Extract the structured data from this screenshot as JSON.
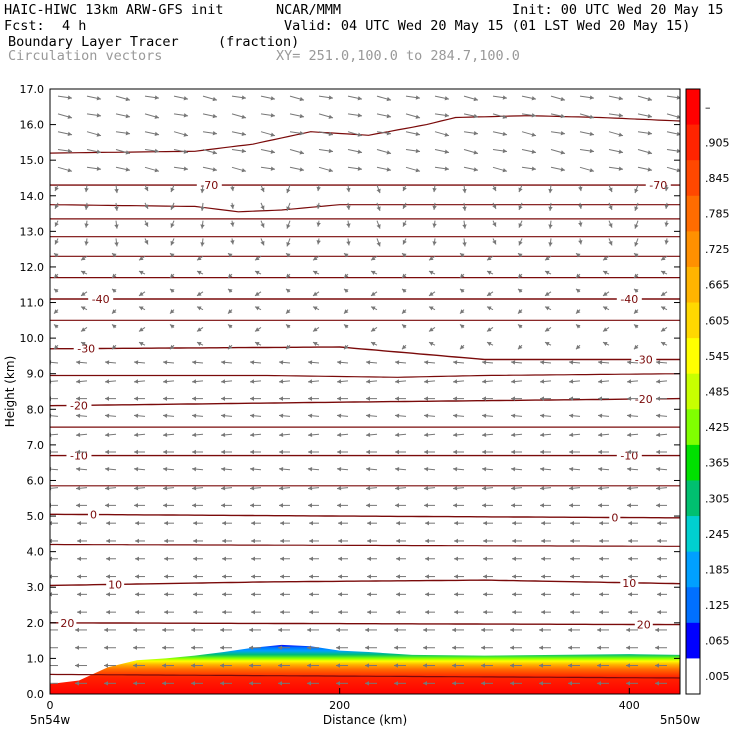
{
  "header": {
    "model": "HAIC-HIWC 13km ARW-GFS init",
    "org": "NCAR/MMM",
    "init": "Init: 00 UTC Wed 20 May 15",
    "fcst_label": "Fcst:",
    "fcst_value": "4 h",
    "valid": "Valid: 04 UTC Wed 20 May 15 (01 LST Wed 20 May 15)",
    "field1": "Boundary Layer Tracer",
    "field1_units": "(fraction)",
    "field2": "Circulation vectors",
    "xsec": "XY= 251.0,100.0 to 284.7,100.0"
  },
  "chart_data": {
    "type": "heatmap",
    "xlabel": "Distance (km)",
    "ylabel": "Height (km)",
    "xlim": [
      0,
      435
    ],
    "ylim": [
      0,
      17
    ],
    "x_ticks": [
      0,
      200,
      400
    ],
    "y_ticks": [
      "0.0",
      "1.0",
      "2.0",
      "3.0",
      "4.0",
      "5.0",
      "6.0",
      "7.0",
      "8.0",
      "9.0",
      "10.0",
      "11.0",
      "12.0",
      "13.0",
      "14.0",
      "15.0",
      "16.0",
      "17.0"
    ],
    "x_endpoints": [
      "5n54w",
      "5n50w"
    ],
    "colorbar": {
      "labels": [
        "–",
        ".905",
        ".845",
        ".785",
        ".725",
        ".665",
        ".605",
        ".545",
        ".485",
        ".425",
        ".365",
        ".305",
        ".245",
        ".185",
        ".125",
        ".065",
        ".005"
      ],
      "colors": [
        "#ff0000",
        "#ff2400",
        "#ff4800",
        "#ff6c00",
        "#ff9000",
        "#ffb400",
        "#ffd800",
        "#ffff00",
        "#c8ff00",
        "#80ff00",
        "#00e000",
        "#00c070",
        "#00d0d0",
        "#00a0ff",
        "#0070ff",
        "#0000ff",
        "#ffffff"
      ]
    },
    "tracer_top_km": [
      [
        0,
        0.28
      ],
      [
        20,
        0.38
      ],
      [
        40,
        0.75
      ],
      [
        60,
        0.95
      ],
      [
        80,
        1.0
      ],
      [
        100,
        1.08
      ],
      [
        120,
        1.18
      ],
      [
        140,
        1.3
      ],
      [
        160,
        1.38
      ],
      [
        180,
        1.34
      ],
      [
        200,
        1.22
      ],
      [
        220,
        1.18
      ],
      [
        250,
        1.1
      ],
      [
        300,
        1.08
      ],
      [
        350,
        1.1
      ],
      [
        400,
        1.12
      ],
      [
        435,
        1.1
      ]
    ],
    "contours": [
      {
        "label": "20",
        "values": [
          [
            0,
            2.0
          ],
          [
            435,
            1.95
          ]
        ],
        "label_x": [
          12,
          410
        ]
      },
      {
        "label": "10",
        "values": [
          [
            0,
            3.05
          ],
          [
            150,
            3.15
          ],
          [
            300,
            3.2
          ],
          [
            435,
            3.1
          ]
        ],
        "label_x": [
          45,
          400
        ]
      },
      {
        "label": "0",
        "values": [
          [
            0,
            5.05
          ],
          [
            200,
            5.0
          ],
          [
            435,
            4.95
          ]
        ],
        "label_x": [
          30,
          390
        ]
      },
      {
        "label": "-10",
        "values": [
          [
            0,
            6.7
          ],
          [
            435,
            6.7
          ]
        ],
        "label_x": [
          20,
          400
        ]
      },
      {
        "label": "-20",
        "values": [
          [
            0,
            8.1
          ],
          [
            200,
            8.2
          ],
          [
            435,
            8.3
          ]
        ],
        "label_x": [
          20,
          410
        ]
      },
      {
        "label": "-30",
        "values": [
          [
            0,
            9.7
          ],
          [
            200,
            9.75
          ],
          [
            300,
            9.4
          ],
          [
            435,
            9.4
          ]
        ],
        "label_x": [
          25,
          410
        ]
      },
      {
        "label": "-40",
        "values": [
          [
            0,
            11.1
          ],
          [
            435,
            11.1
          ]
        ],
        "label_x": [
          35,
          400
        ]
      },
      {
        "label": "-70",
        "values": [
          [
            0,
            14.3
          ],
          [
            435,
            14.3
          ]
        ],
        "label_x": [
          110,
          420
        ]
      }
    ],
    "plain_contours": [
      {
        "values": [
          [
            0,
            0.55
          ],
          [
            435,
            0.45
          ]
        ]
      },
      {
        "values": [
          [
            0,
            4.2
          ],
          [
            435,
            4.15
          ]
        ]
      },
      {
        "values": [
          [
            0,
            5.85
          ],
          [
            435,
            5.85
          ]
        ]
      },
      {
        "values": [
          [
            0,
            7.5
          ],
          [
            435,
            7.5
          ]
        ]
      },
      {
        "values": [
          [
            0,
            8.95
          ],
          [
            150,
            8.95
          ],
          [
            240,
            8.9
          ],
          [
            300,
            8.95
          ],
          [
            435,
            9.0
          ]
        ]
      },
      {
        "values": [
          [
            0,
            10.5
          ],
          [
            435,
            10.5
          ]
        ]
      },
      {
        "values": [
          [
            0,
            11.7
          ],
          [
            435,
            11.7
          ]
        ]
      },
      {
        "values": [
          [
            0,
            12.3
          ],
          [
            435,
            12.3
          ]
        ]
      },
      {
        "values": [
          [
            0,
            12.85
          ],
          [
            435,
            12.85
          ]
        ]
      },
      {
        "values": [
          [
            0,
            13.35
          ],
          [
            435,
            13.35
          ]
        ]
      },
      {
        "values": [
          [
            0,
            13.75
          ],
          [
            100,
            13.7
          ],
          [
            130,
            13.55
          ],
          [
            160,
            13.6
          ],
          [
            200,
            13.75
          ],
          [
            435,
            13.75
          ]
        ]
      },
      {
        "values": [
          [
            0,
            15.2
          ],
          [
            100,
            15.25
          ],
          [
            140,
            15.45
          ],
          [
            180,
            15.8
          ],
          [
            220,
            15.7
          ],
          [
            260,
            16.0
          ],
          [
            280,
            16.2
          ],
          [
            330,
            16.25
          ],
          [
            380,
            16.2
          ],
          [
            435,
            16.1
          ]
        ]
      }
    ]
  }
}
